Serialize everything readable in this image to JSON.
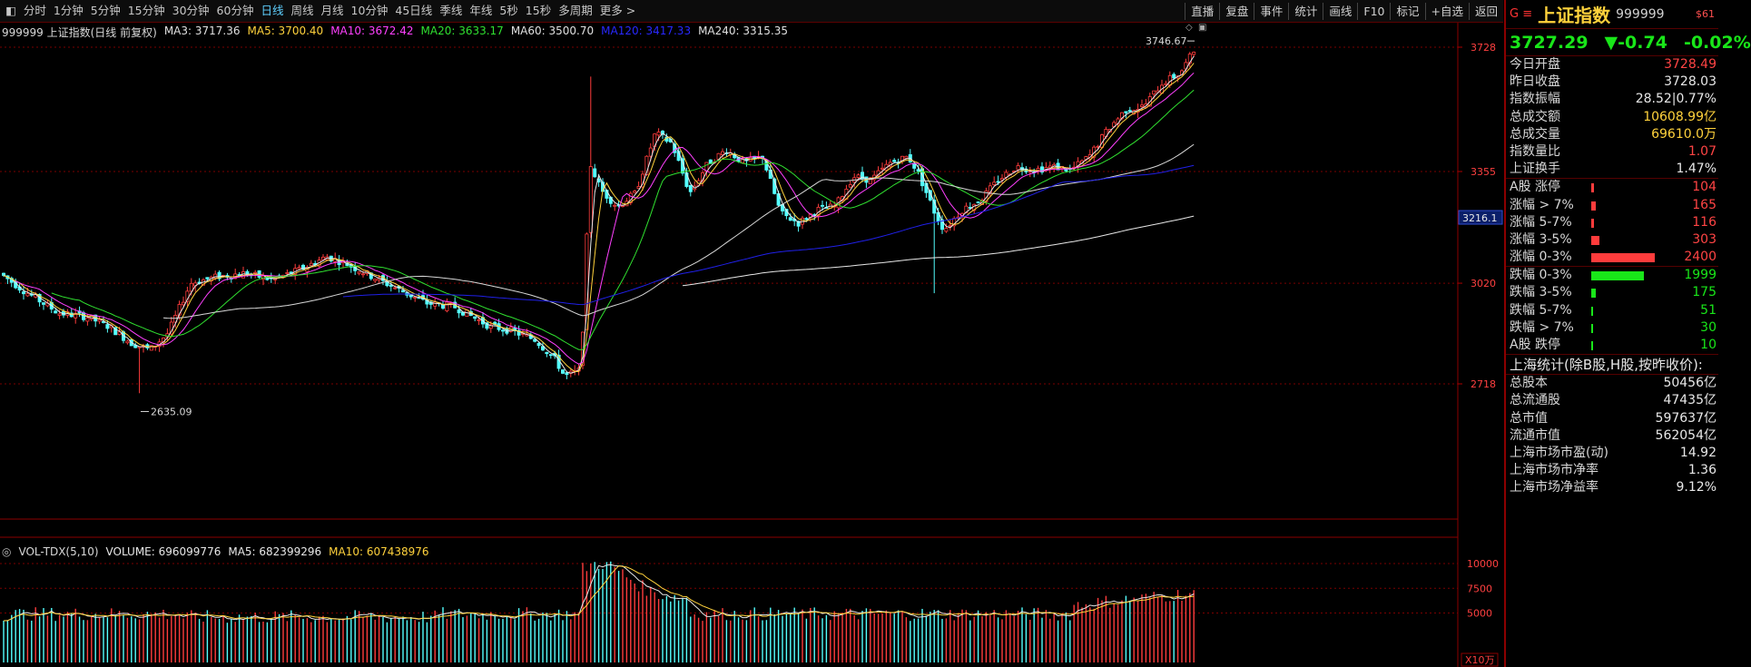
{
  "toolbar": {
    "periods": [
      "分时",
      "1分钟",
      "5分钟",
      "15分钟",
      "30分钟",
      "60分钟",
      "日线",
      "周线",
      "月线",
      "10分钟",
      "45日线",
      "季线",
      "年线",
      "5秒",
      "15秒",
      "多周期",
      "更多 >"
    ],
    "active_period": "日线",
    "right_buttons": [
      "直播",
      "复盘",
      "事件",
      "统计",
      "画线",
      "F10",
      "标记",
      "+自选",
      "返回"
    ]
  },
  "chart_header": {
    "title": "999999 上证指数(日线 前复权)",
    "ma": [
      {
        "label": "MA3: 3717.36",
        "color": "#e0e0e0"
      },
      {
        "label": "MA5: 3700.40",
        "color": "#ffd23c"
      },
      {
        "label": "MA10: 3672.42",
        "color": "#ff40ff"
      },
      {
        "label": "MA20: 3633.17",
        "color": "#30e030"
      },
      {
        "label": "MA60: 3500.70",
        "color": "#e0e0e0"
      },
      {
        "label": "MA120: 3417.33",
        "color": "#2828ff"
      },
      {
        "label": "MA240: 3315.35",
        "color": "#e0e0e0"
      }
    ]
  },
  "price_axis": {
    "ticks": [
      {
        "value": 3728,
        "label": "3728"
      },
      {
        "value": 3355,
        "label": "3355"
      },
      {
        "value": 3020,
        "label": "3020"
      },
      {
        "value": 2718,
        "label": "2718"
      }
    ],
    "cursor_value": "3216.1",
    "high_marker": "3746.67",
    "low_marker": "2635.09"
  },
  "volume_header": {
    "indicator": "VOL-TDX(5,10)",
    "volume": "VOLUME: 696099776",
    "ma5": "MA5: 682399296",
    "ma10": "MA10: 607438976"
  },
  "volume_axis": {
    "ticks": [
      {
        "value": 10000,
        "label": "10000"
      },
      {
        "value": 7500,
        "label": "7500"
      },
      {
        "value": 5000,
        "label": "5000"
      }
    ],
    "unit": "X10万"
  },
  "colors": {
    "up": "#ff3c3c",
    "down": "#54ffff",
    "ma3": "#e8e8e8",
    "ma5": "#ffd23c",
    "ma10": "#ff40ff",
    "ma20": "#30e030",
    "ma60": "#d8d8d8",
    "ma120": "#2020e8",
    "ma240": "#e8e8e8",
    "grid": "#7a0000"
  },
  "panel": {
    "g_label": "G ≡",
    "name": "上证指数",
    "code": "999999",
    "badge": "$61",
    "price": "3727.29",
    "change": "▼-0.74",
    "change_pct": "-0.02%",
    "quote_rows": [
      {
        "label": "今日开盘",
        "value": "3728.49",
        "color": "#ff4444"
      },
      {
        "label": "昨日收盘",
        "value": "3728.03",
        "color": "#e8e8e8"
      },
      {
        "label": "指数振幅",
        "value": "28.52|0.77%",
        "color": "#e8e8e8"
      },
      {
        "label": "总成交额",
        "value": "10608.99亿",
        "color": "#ffd23c"
      },
      {
        "label": "总成交量",
        "value": "69610.0万",
        "color": "#ffd23c"
      },
      {
        "label": "指数量比",
        "value": "1.07",
        "color": "#ff4444"
      },
      {
        "label": "上证换手",
        "value": "1.47%",
        "color": "#e8e8e8"
      }
    ],
    "up_rows": [
      {
        "label": "A股 涨停",
        "value": "104",
        "frac": 0.043
      },
      {
        "label": "涨幅 > 7%",
        "value": "165",
        "frac": 0.069
      },
      {
        "label": "涨幅 5-7%",
        "value": "116",
        "frac": 0.048
      },
      {
        "label": "涨幅 3-5%",
        "value": "303",
        "frac": 0.126
      },
      {
        "label": "涨幅 0-3%",
        "value": "2400",
        "frac": 1.0
      }
    ],
    "down_rows": [
      {
        "label": "跌幅 0-3%",
        "value": "1999",
        "frac": 0.833
      },
      {
        "label": "跌幅 3-5%",
        "value": "175",
        "frac": 0.073
      },
      {
        "label": "跌幅 5-7%",
        "value": "51",
        "frac": 0.021
      },
      {
        "label": "跌幅 > 7%",
        "value": "30",
        "frac": 0.0125
      },
      {
        "label": "A股 跌停",
        "value": "10",
        "frac": 0.004
      }
    ],
    "stats_title": "上海统计(除B股,H股,按昨收价):",
    "stats_rows": [
      {
        "label": "总股本",
        "value": "50456亿"
      },
      {
        "label": "总流通股",
        "value": "47435亿"
      },
      {
        "label": "总市值",
        "value": "597637亿"
      },
      {
        "label": "流通市值",
        "value": "562054亿"
      },
      {
        "label": "上海市场市盈(动)",
        "value": "14.92"
      },
      {
        "label": "上海市场市净率",
        "value": "1.36"
      },
      {
        "label": "上海市场净益率",
        "value": "9.12%"
      }
    ]
  }
}
